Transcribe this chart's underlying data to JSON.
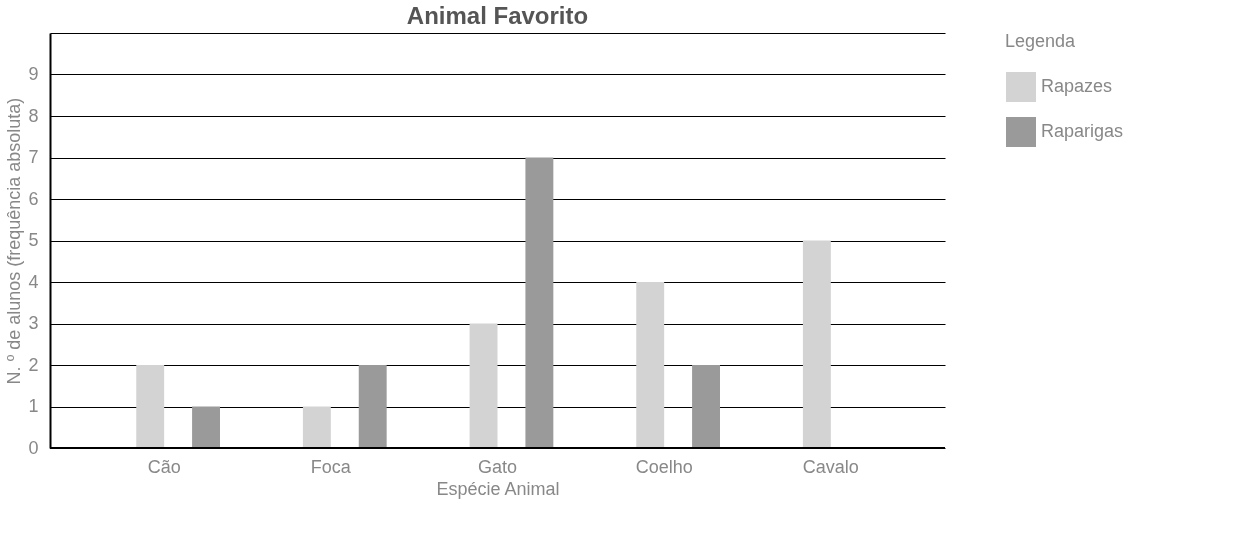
{
  "chart_data": {
    "type": "bar",
    "title": "Animal Favorito",
    "xlabel": "Espécie Animal",
    "ylabel": "N. º de alunos (frequência absoluta)",
    "legend_title": "Legenda",
    "categories": [
      "Cão",
      "Foca",
      "Gato",
      "Coelho",
      "Cavalo"
    ],
    "series": [
      {
        "name": "Rapazes",
        "color": "#d3d3d3",
        "values": [
          2,
          1,
          3,
          4,
          5
        ]
      },
      {
        "name": "Raparigas",
        "color": "#9a9a9a",
        "values": [
          1,
          2,
          7,
          2,
          0
        ]
      }
    ],
    "ylim": [
      0,
      10
    ],
    "yticks": [
      0,
      1,
      2,
      3,
      4,
      5,
      6,
      7,
      8,
      9,
      {
        "value": 10,
        "label": null
      }
    ],
    "grid": "y",
    "legend": "right"
  }
}
